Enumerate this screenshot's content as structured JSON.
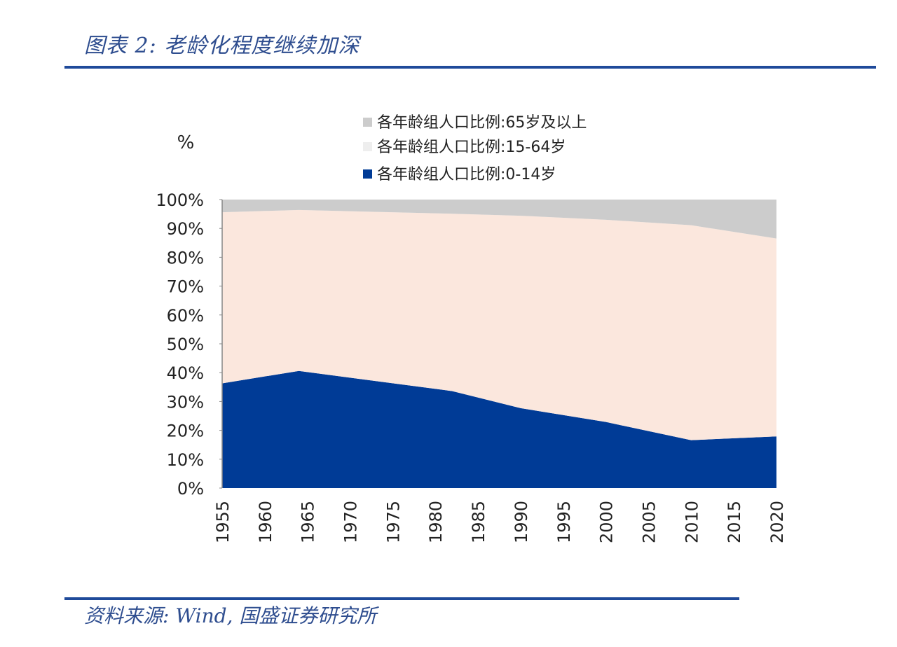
{
  "title": "图表 2:  老龄化程度继续加深",
  "source": "资料来源:  Wind, 国盛证券研究所",
  "chart_data": {
    "type": "area",
    "stacked": true,
    "ylabel": "%",
    "ylim": [
      0,
      100
    ],
    "yticks": [
      "0%",
      "10%",
      "20%",
      "30%",
      "40%",
      "50%",
      "60%",
      "70%",
      "80%",
      "90%",
      "100%"
    ],
    "xticks": [
      "1955",
      "1960",
      "1965",
      "1970",
      "1975",
      "1980",
      "1985",
      "1990",
      "1995",
      "2000",
      "2005",
      "2010",
      "2015",
      "2020"
    ],
    "xlim": [
      1955,
      2020
    ],
    "x": [
      1955,
      1964,
      1982,
      1990,
      2000,
      2010,
      2020
    ],
    "legend_position": "top",
    "series": [
      {
        "name": "各年龄组人口比例:65岁及以上",
        "color": "#cccccc",
        "values": [
          4.4,
          3.6,
          4.9,
          5.6,
          7.0,
          8.9,
          13.5
        ]
      },
      {
        "name": "各年龄组人口比例:15-64岁",
        "color": "#fbe7dd",
        "legend_color": "#eeeeee",
        "values": [
          59.3,
          55.8,
          61.5,
          66.7,
          70.1,
          74.5,
          68.6
        ]
      },
      {
        "name": "各年龄组人口比例:0-14岁",
        "color": "#003b96",
        "values": [
          36.3,
          40.6,
          33.6,
          27.7,
          22.9,
          16.6,
          17.9
        ]
      }
    ]
  }
}
